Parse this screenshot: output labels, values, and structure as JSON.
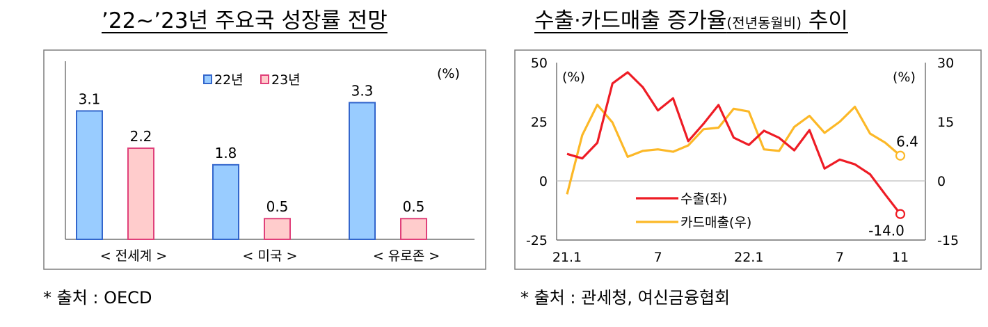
{
  "left_title": "’22~’23년 주요국 성장률 전망",
  "left_source": "* 출처 : OECD",
  "right_title_main": "수출·카드매출 증가율",
  "right_title_small": "(전년동월비)",
  "right_title_tail": "추이",
  "right_source": "* 출처 : 관세청, 여신금융협회",
  "chart_data": [
    {
      "type": "bar",
      "title": "’22~’23년 주요국 성장률 전망",
      "unit": "(%)",
      "categories": [
        "< 전세계 >",
        "< 미국 >",
        "< 유로존 >"
      ],
      "series": [
        {
          "name": "22년",
          "values": [
            3.1,
            1.8,
            3.3
          ],
          "color": "#99ccff",
          "border": "#3366cc"
        },
        {
          "name": "23년",
          "values": [
            2.2,
            0.5,
            0.5
          ],
          "color": "#ffcccc",
          "border": "#e0407a"
        }
      ],
      "legend": "top-center",
      "ylim": [
        0,
        4.3
      ],
      "grid": false
    },
    {
      "type": "line",
      "title": "수출·카드매출 증가율(전년동월비) 추이",
      "left_unit": "(%)",
      "right_unit": "(%)",
      "x_ticks": [
        "21.1",
        "7",
        "22.1",
        "7",
        "11"
      ],
      "x_tick_index": [
        0,
        6,
        12,
        18,
        22
      ],
      "y_left_ticks": [
        "50",
        "25",
        "0",
        "-25"
      ],
      "y_right_ticks": [
        "30",
        "15",
        "0",
        "-15"
      ],
      "y_left_lim": [
        -25,
        50
      ],
      "y_right_lim": [
        -15,
        30
      ],
      "series": [
        {
          "name": "수출(좌)",
          "axis": "left",
          "color": "#ee1c25",
          "values": [
            11.4,
            9.5,
            16.1,
            41.2,
            45.9,
            39.6,
            29.8,
            34.9,
            16.8,
            24.1,
            32.1,
            18.3,
            15.2,
            21.2,
            18.2,
            12.9,
            21.5,
            5.2,
            9.0,
            7.0,
            2.8,
            -5.7,
            -14.0
          ],
          "end_label": "-14.0"
        },
        {
          "name": "카드매출(우)",
          "axis": "right",
          "color": "#fcb827",
          "values": [
            -3.4,
            11.6,
            19.3,
            14.8,
            6.1,
            7.6,
            8.0,
            7.4,
            9.0,
            13.1,
            13.5,
            18.3,
            17.6,
            8.0,
            7.6,
            13.7,
            16.5,
            12.2,
            15.0,
            18.8,
            12.0,
            9.7,
            6.4
          ],
          "end_label": "6.4"
        }
      ],
      "legend": "bottom-center",
      "grid": "zero-line"
    }
  ]
}
